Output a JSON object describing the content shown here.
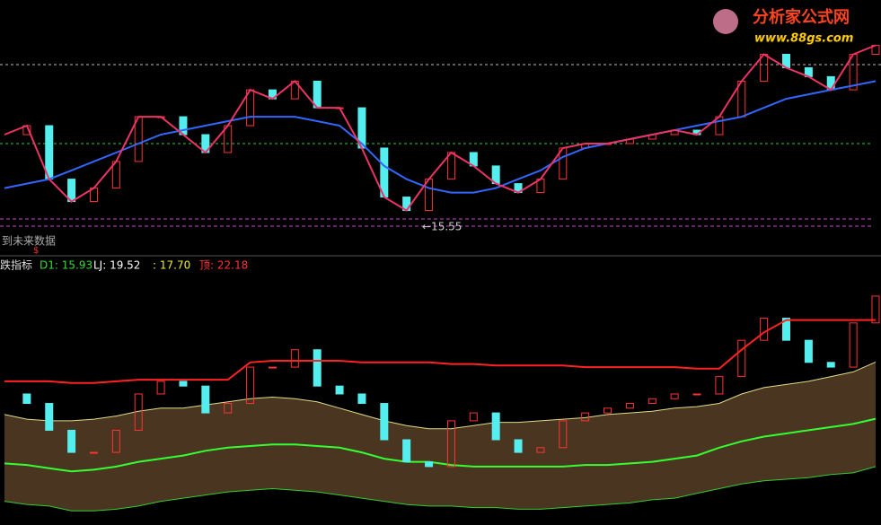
{
  "logo": {
    "title": "分析家公式网",
    "url": "www.88gs.com"
  },
  "price_panel": {
    "ylim": [
      14.9,
      22.9
    ],
    "note": "到未来数据",
    "low_label": "←15.55",
    "close": [
      19.09,
      19.47,
      17.2,
      16.25,
      16.82,
      17.95,
      19.85,
      19.85,
      19.09,
      18.33,
      19.47,
      20.99,
      20.61,
      21.36,
      20.23,
      20.23,
      18.52,
      16.44,
      15.87,
      17.2,
      18.33,
      17.76,
      17.01,
      16.63,
      17.2,
      18.52,
      18.71,
      18.71,
      18.9,
      19.09,
      19.28,
      19.09,
      19.85,
      21.36,
      22.5,
      21.93,
      21.55,
      20.99,
      22.5,
      22.88
    ],
    "ma": [
      16.82,
      17.01,
      17.2,
      17.57,
      17.95,
      18.33,
      18.71,
      19.09,
      19.28,
      19.47,
      19.66,
      19.85,
      19.85,
      19.85,
      19.66,
      19.47,
      18.71,
      17.76,
      17.2,
      16.82,
      16.63,
      16.63,
      16.82,
      17.2,
      17.57,
      18.14,
      18.52,
      18.71,
      18.9,
      19.09,
      19.28,
      19.47,
      19.66,
      19.85,
      20.23,
      20.61,
      20.8,
      20.99,
      21.17,
      21.36
    ]
  },
  "indicator_panel": {
    "ylim": [
      9.2,
      25.4
    ],
    "name": "跌指标",
    "marker": "$",
    "legend": [
      "D1: 15.93",
      "LJ: 19.52",
      ": 17.70",
      "顶: 22.18"
    ],
    "close": [
      17.5,
      16.9,
      15.2,
      13.8,
      13.8,
      15.2,
      17.5,
      18.3,
      18.0,
      16.3,
      16.9,
      19.2,
      19.2,
      20.3,
      18.0,
      17.5,
      16.9,
      14.6,
      13.2,
      12.9,
      15.8,
      16.3,
      14.6,
      13.8,
      14.1,
      15.8,
      16.3,
      16.6,
      16.9,
      17.2,
      17.5,
      17.5,
      18.6,
      20.9,
      22.3,
      20.9,
      19.5,
      19.2,
      22.0,
      23.7
    ],
    "top": [
      18.3,
      18.3,
      18.3,
      18.2,
      18.2,
      18.3,
      18.4,
      18.4,
      18.4,
      18.4,
      18.4,
      19.5,
      19.6,
      19.6,
      19.6,
      19.6,
      19.5,
      19.5,
      19.5,
      19.5,
      19.4,
      19.4,
      19.3,
      19.3,
      19.3,
      19.3,
      19.2,
      19.2,
      19.2,
      19.2,
      19.2,
      19.1,
      19.1,
      20.3,
      21.4,
      22.18,
      22.18,
      22.18,
      22.18,
      22.18
    ],
    "upper": [
      16.2,
      15.9,
      15.8,
      15.8,
      15.9,
      16.1,
      16.4,
      16.6,
      16.6,
      16.8,
      17.0,
      17.2,
      17.3,
      17.2,
      17.0,
      16.6,
      16.2,
      15.8,
      15.5,
      15.3,
      15.3,
      15.5,
      15.7,
      15.7,
      15.8,
      15.9,
      16.0,
      16.2,
      16.3,
      16.4,
      16.6,
      16.7,
      16.9,
      17.5,
      17.9,
      18.1,
      18.3,
      18.6,
      18.9,
      19.52
    ],
    "mid": [
      13.1,
      13.0,
      12.8,
      12.6,
      12.7,
      12.9,
      13.2,
      13.4,
      13.6,
      13.9,
      14.1,
      14.2,
      14.3,
      14.3,
      14.2,
      14.1,
      13.8,
      13.4,
      13.2,
      13.2,
      13.0,
      12.9,
      12.9,
      12.9,
      12.9,
      12.9,
      13.0,
      13.0,
      13.1,
      13.2,
      13.4,
      13.6,
      14.1,
      14.5,
      14.8,
      15.0,
      15.2,
      15.4,
      15.6,
      15.93
    ],
    "lower": [
      10.7,
      10.5,
      10.4,
      10.1,
      10.1,
      10.2,
      10.4,
      10.7,
      10.9,
      11.1,
      11.3,
      11.4,
      11.5,
      11.4,
      11.3,
      11.1,
      10.9,
      10.7,
      10.5,
      10.4,
      10.4,
      10.3,
      10.3,
      10.2,
      10.2,
      10.3,
      10.4,
      10.5,
      10.6,
      10.8,
      10.9,
      11.2,
      11.5,
      11.8,
      12.0,
      12.1,
      12.2,
      12.4,
      12.5,
      12.9
    ]
  }
}
